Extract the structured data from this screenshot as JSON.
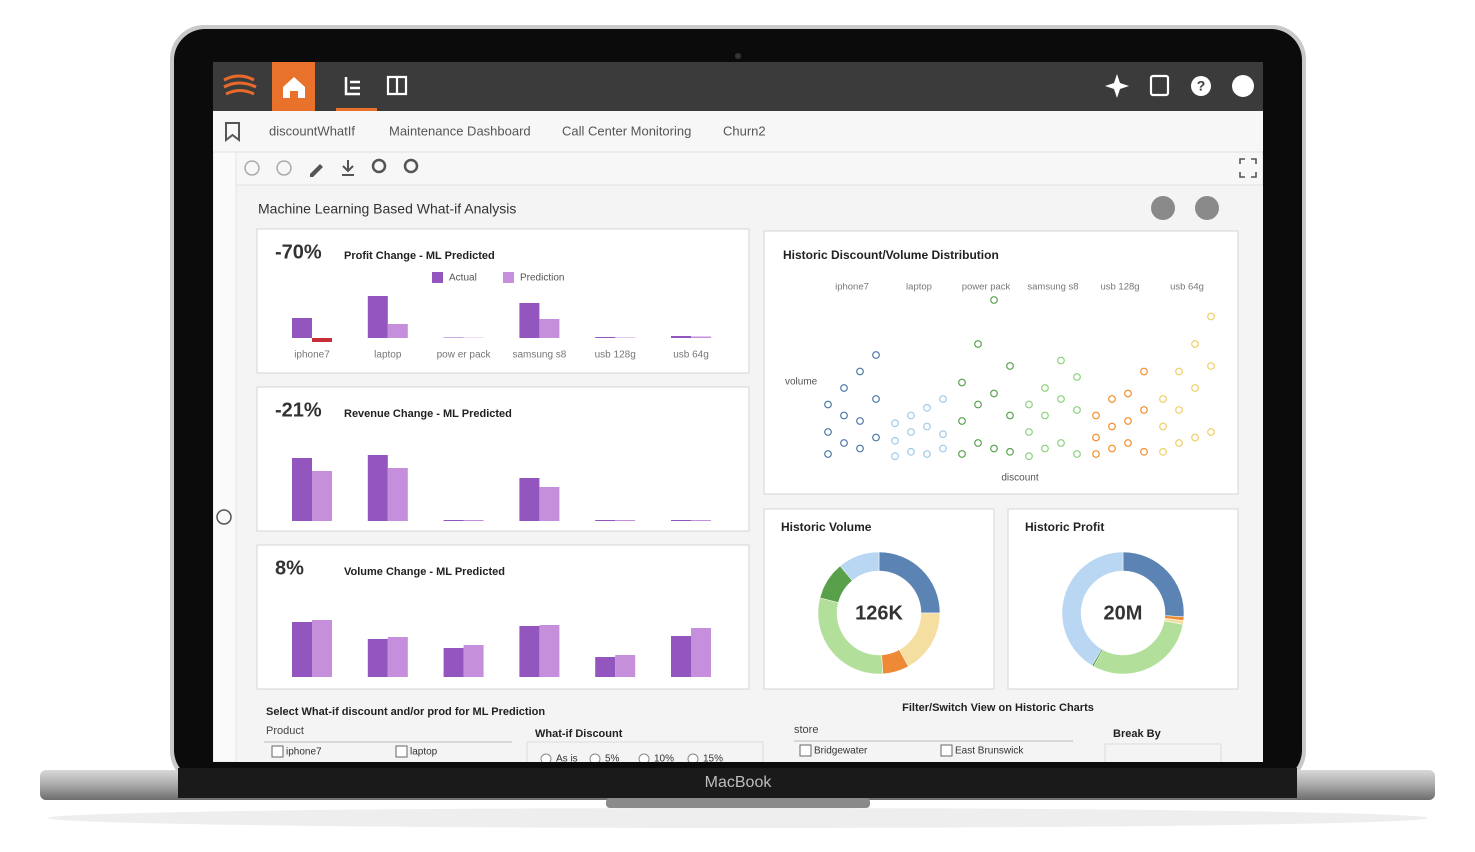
{
  "device": "MacBook",
  "tabs": [
    "discountWhatIf",
    "Maintenance Dashboard",
    "Call Center Monitoring",
    "Churn2"
  ],
  "dashboard_title": "Machine Learning Based What-if Analysis",
  "form": {
    "title": "Select What-if discount and/or prod for ML Prediction",
    "product_label": "Product",
    "products": [
      "iphone7",
      "laptop"
    ],
    "discount_label": "What-if Discount",
    "discounts": [
      "As is",
      "5%",
      "10%",
      "15%"
    ],
    "filter_title": "Filter/Switch View on Historic Charts",
    "store_label": "store",
    "stores": [
      "Bridgewater",
      "East Brunswick"
    ],
    "break_label": "Break By"
  },
  "chart_data": [
    {
      "type": "bar",
      "kpi": "-70%",
      "title": "Profit Change - ML Predicted",
      "legend": true,
      "negative_color": "#c62f3a",
      "categories": [
        "iphone7",
        "laptop",
        "pow er pack",
        "samsung s8",
        "usb 128g",
        "usb 64g"
      ],
      "series": [
        {
          "name": "Actual",
          "color": "#9356be",
          "values": [
            20,
            42,
            0.5,
            35,
            1,
            2
          ]
        },
        {
          "name": "Prediction",
          "color": "#c58fdb",
          "values": [
            -4,
            14,
            0.3,
            19,
            0.5,
            1.5
          ]
        }
      ]
    },
    {
      "type": "bar",
      "kpi": "-21%",
      "title": "Revenue Change - ML Predicted",
      "legend": false,
      "negative_color": "#c62f3a",
      "series": [
        {
          "color": "#9356be",
          "values": [
            63,
            66,
            1,
            43,
            1,
            1
          ]
        },
        {
          "color": "#c58fdb",
          "values": [
            50,
            53,
            1,
            34,
            1,
            1
          ]
        }
      ]
    },
    {
      "type": "bar",
      "kpi": "8%",
      "title": "Volume Change - ML Predicted",
      "legend": false,
      "negative_color": "#c62f3a",
      "series": [
        {
          "color": "#9356be",
          "values": [
            55,
            38,
            29,
            51,
            20,
            41
          ]
        },
        {
          "color": "#c58fdb",
          "values": [
            57,
            40,
            32,
            52,
            22,
            49
          ]
        }
      ]
    },
    {
      "type": "scatter",
      "title": "Historic Discount/Volume Distribution",
      "x_label": "discount",
      "y_label": "volume",
      "x": [
        0,
        0,
        0,
        5,
        5,
        5,
        10,
        10,
        10,
        15,
        15,
        15
      ],
      "series": [
        {
          "name": "iphone7",
          "color": "#4e79a7",
          "values": [
            10,
            30,
            55,
            20,
            45,
            70,
            15,
            40,
            85,
            25,
            60,
            100
          ]
        },
        {
          "name": "laptop",
          "color": "#a0cbe8",
          "values": [
            8,
            22,
            38,
            12,
            30,
            45,
            10,
            35,
            52,
            15,
            28,
            60
          ]
        },
        {
          "name": "power pack",
          "color": "#59a14f",
          "values": [
            10,
            40,
            75,
            20,
            55,
            110,
            15,
            65,
            150,
            12,
            45,
            90
          ]
        },
        {
          "name": "samsung s8",
          "color": "#8cd17d",
          "values": [
            8,
            30,
            55,
            15,
            45,
            70,
            20,
            60,
            95,
            10,
            50,
            80
          ]
        },
        {
          "name": "usb 128g",
          "color": "#f28e2b",
          "values": [
            10,
            25,
            45,
            15,
            35,
            60,
            20,
            40,
            65,
            12,
            50,
            85
          ]
        },
        {
          "name": "usb 64g",
          "color": "#f1ce63",
          "values": [
            12,
            35,
            60,
            20,
            50,
            85,
            25,
            70,
            110,
            30,
            90,
            135
          ]
        }
      ]
    },
    {
      "type": "donut",
      "title": "Historic Volume",
      "center_label": "126K",
      "values": [
        25,
        17,
        7,
        30,
        10,
        11
      ],
      "colors": [
        "#5b84b5",
        "#f5dfa0",
        "#ee8a35",
        "#b2e09a",
        "#58a14a",
        "#b9d6f2"
      ]
    },
    {
      "type": "donut",
      "title": "Historic Profit",
      "center_label": "20M",
      "values": [
        26,
        1,
        1,
        30,
        0.5,
        41.5
      ],
      "colors": [
        "#5b84b5",
        "#ee8a35",
        "#f5dfa0",
        "#b2e09a",
        "#58a14a",
        "#b9d6f2"
      ]
    }
  ]
}
